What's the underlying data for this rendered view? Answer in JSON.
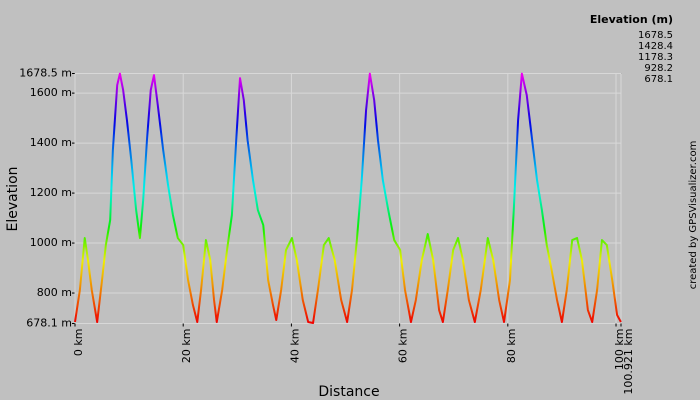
{
  "chart_data": {
    "type": "line",
    "x_label": "Distance",
    "y_label": "Elevation",
    "legend_title": "Elevation (m)",
    "credit": "created by GPSVisualizer.com",
    "color_scale": [
      {
        "value": 1678.5,
        "color": "#ff00ff"
      },
      {
        "value": 1428.4,
        "color": "#0044ff"
      },
      {
        "value": 1178.3,
        "color": "#00ffcc"
      },
      {
        "value": 928.2,
        "color": "#ffff00"
      },
      {
        "value": 678.1,
        "color": "#ff0000"
      }
    ],
    "xlim": [
      0,
      100.921
    ],
    "ylim": [
      678.1,
      1678.5
    ],
    "xticks": [
      {
        "value": 0,
        "label": "0 km"
      },
      {
        "value": 20,
        "label": "20 km"
      },
      {
        "value": 40,
        "label": "40 km"
      },
      {
        "value": 60,
        "label": "60 km"
      },
      {
        "value": 80,
        "label": "80 km"
      },
      {
        "value": 100,
        "label": "100 km"
      },
      {
        "value": 100.921,
        "label": "100.921 km"
      }
    ],
    "yticks": [
      {
        "value": 678.1,
        "label": "678.1 m"
      },
      {
        "value": 800,
        "label": "800 m"
      },
      {
        "value": 1000,
        "label": "1000 m"
      },
      {
        "value": 1200,
        "label": "1200 m"
      },
      {
        "value": 1400,
        "label": "1400 m"
      },
      {
        "value": 1600,
        "label": "1600 m"
      },
      {
        "value": 1678.5,
        "label": "1678.5 m"
      }
    ],
    "grid": true,
    "x": [
      0,
      0.9,
      1.8,
      2.4,
      3.1,
      4.1,
      5.0,
      5.7,
      6.5,
      7.0,
      7.8,
      8.3,
      8.9,
      9.6,
      10.4,
      11.3,
      12.0,
      12.6,
      13.3,
      14.0,
      14.6,
      15.3,
      16.3,
      17.2,
      18.1,
      19.0,
      20.0,
      20.9,
      21.8,
      22.6,
      23.3,
      24.2,
      25.0,
      25.7,
      26.2,
      27.2,
      28.1,
      29.0,
      29.8,
      30.5,
      31.2,
      31.9,
      32.9,
      33.8,
      34.8,
      35.7,
      36.6,
      37.2,
      38.1,
      39.0,
      40.1,
      41.0,
      42.1,
      43.1,
      44.0,
      44.9,
      46.0,
      46.9,
      48.0,
      49.2,
      50.3,
      51.2,
      52.1,
      53.0,
      53.8,
      54.5,
      55.3,
      56.0,
      56.9,
      57.9,
      59.0,
      60.1,
      61.0,
      62.1,
      63.0,
      64.1,
      65.2,
      66.2,
      67.3,
      68.0,
      68.9,
      69.9,
      70.8,
      71.7,
      72.8,
      73.9,
      75.0,
      76.3,
      77.3,
      78.4,
      79.3,
      80.4,
      81.1,
      81.9,
      82.6,
      83.5,
      84.5,
      85.4,
      86.3,
      87.2,
      88.1,
      89.1,
      90.0,
      90.9,
      91.9,
      92.8,
      93.7,
      94.8,
      95.6,
      96.5,
      97.4,
      98.3,
      99.3,
      100.2,
      100.9
    ],
    "values": [
      684,
      812,
      1020,
      932,
      812,
      684,
      852,
      992,
      1092,
      1372,
      1632,
      1678,
      1612,
      1492,
      1332,
      1132,
      1020,
      1172,
      1412,
      1612,
      1672,
      1552,
      1372,
      1232,
      1112,
      1020,
      992,
      852,
      752,
      684,
      812,
      1012,
      932,
      772,
      684,
      812,
      972,
      1112,
      1412,
      1660,
      1572,
      1412,
      1252,
      1132,
      1072,
      852,
      752,
      692,
      812,
      972,
      1020,
      932,
      772,
      684,
      680,
      812,
      992,
      1020,
      932,
      772,
      684,
      812,
      1012,
      1252,
      1532,
      1678,
      1572,
      1412,
      1252,
      1132,
      1012,
      972,
      812,
      684,
      772,
      932,
      1036,
      932,
      732,
      684,
      812,
      972,
      1020,
      932,
      772,
      684,
      812,
      1020,
      932,
      772,
      684,
      852,
      1132,
      1492,
      1678,
      1592,
      1412,
      1252,
      1132,
      992,
      892,
      772,
      684,
      812,
      1012,
      1020,
      932,
      732,
      684,
      812,
      1012,
      992,
      852,
      712,
      684
    ]
  }
}
